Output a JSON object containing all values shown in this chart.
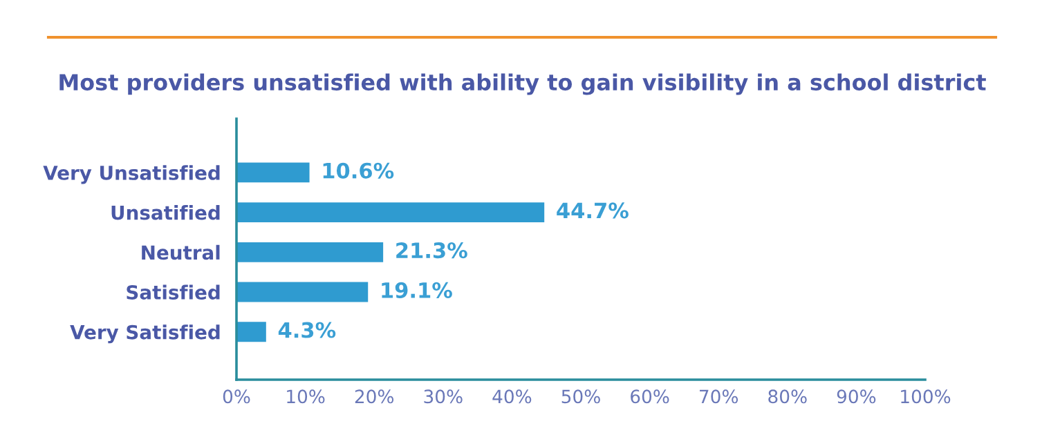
{
  "chart_data": {
    "type": "bar",
    "orientation": "horizontal",
    "title": "Most providers unsatisfied with ability to gain visibility in a school district",
    "categories": [
      "Very Unsatisfied",
      "Unsatified",
      "Neutral",
      "Satisfied",
      "Very Satisfied"
    ],
    "values": [
      10.6,
      44.7,
      21.3,
      19.1,
      4.3
    ],
    "value_labels": [
      "10.6%",
      "44.7%",
      "21.3%",
      "19.1%",
      "4.3%"
    ],
    "color": "#2f9bd0",
    "xlim": [
      0,
      100
    ],
    "xticks": [
      {
        "value": 0,
        "label": "0%"
      },
      {
        "value": 10,
        "label": "10%"
      },
      {
        "value": 20,
        "label": "20%"
      },
      {
        "value": 30,
        "label": "30%"
      },
      {
        "value": 40,
        "label": "40%"
      },
      {
        "value": 50,
        "label": "50%"
      },
      {
        "value": 60,
        "label": "60%"
      },
      {
        "value": 70,
        "label": "70%"
      },
      {
        "value": 80,
        "label": "80%"
      },
      {
        "value": 90,
        "label": "90%"
      },
      {
        "value": 100,
        "label": "100%"
      }
    ],
    "grid": false,
    "legend": false
  }
}
